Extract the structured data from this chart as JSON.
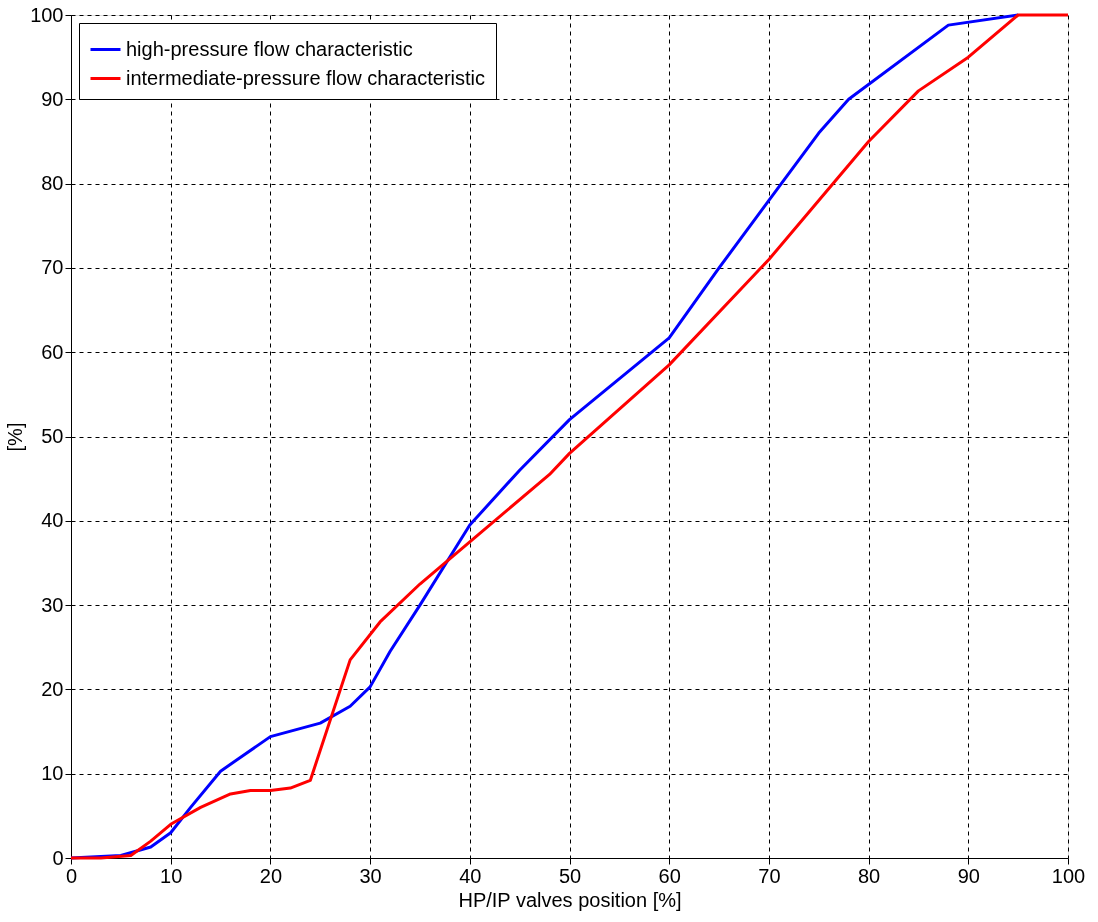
{
  "chart_data": {
    "type": "line",
    "xlabel": "HP/IP valves position [%]",
    "ylabel": "[%]",
    "xlim": [
      0,
      100
    ],
    "ylim": [
      0,
      100
    ],
    "xticks": [
      0,
      10,
      20,
      30,
      40,
      50,
      60,
      70,
      80,
      90,
      100
    ],
    "yticks": [
      0,
      10,
      20,
      30,
      40,
      50,
      60,
      70,
      80,
      90,
      100
    ],
    "grid": true,
    "legend": "top left",
    "line_style": "solid",
    "series": [
      {
        "name": "high-pressure flow characteristic",
        "color": "#0000ff",
        "x": [
          0,
          5,
          8,
          10,
          12,
          15,
          20,
          25,
          28,
          30,
          32,
          35,
          40,
          45,
          50,
          60,
          65,
          70,
          75,
          78,
          88,
          95
        ],
        "values": [
          0,
          0.3,
          1.3,
          3,
          6,
          10.3,
          14.4,
          16,
          18,
          20.3,
          24.5,
          30,
          39.5,
          46,
          52,
          61.7,
          70,
          78,
          86,
          90,
          98.8,
          100
        ]
      },
      {
        "name": "intermediate-pressure flow characteristic",
        "color": "#ff0000",
        "x": [
          0,
          3,
          6,
          8,
          10,
          13,
          16,
          18,
          20,
          22,
          24,
          28,
          31,
          35,
          40,
          48,
          50,
          60,
          70,
          75,
          80,
          85,
          90,
          95,
          100
        ],
        "values": [
          0,
          0,
          0.3,
          2,
          4,
          6,
          7.6,
          8,
          8,
          8.3,
          9.2,
          23.5,
          28,
          32.5,
          37.5,
          45.5,
          48,
          58.5,
          71,
          78,
          85,
          91,
          95,
          100,
          100
        ]
      }
    ]
  }
}
